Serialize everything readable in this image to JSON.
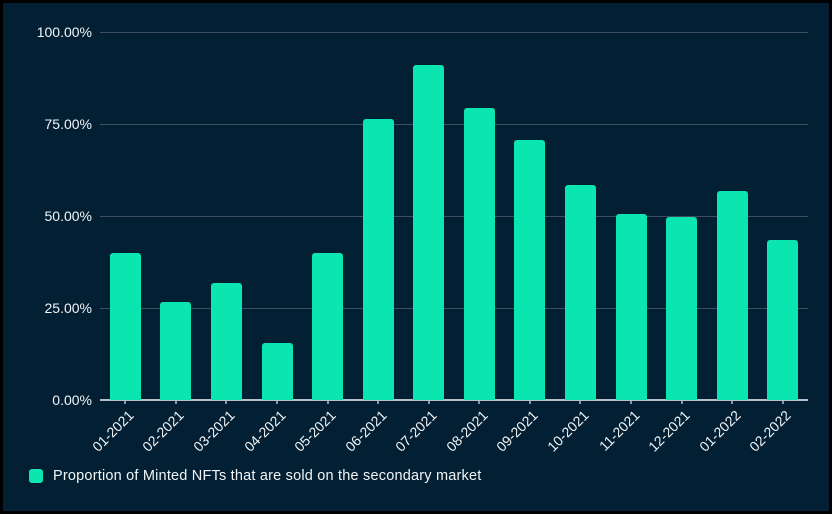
{
  "chart_data": {
    "type": "bar",
    "categories": [
      "01-2021",
      "02-2021",
      "03-2021",
      "04-2021",
      "05-2021",
      "06-2021",
      "07-2021",
      "08-2021",
      "09-2021",
      "10-2021",
      "11-2021",
      "12-2021",
      "01-2022",
      "02-2022"
    ],
    "values": [
      40.0,
      26.7,
      31.7,
      15.6,
      40.0,
      76.3,
      91.0,
      79.4,
      70.6,
      58.3,
      50.6,
      49.7,
      56.7,
      43.6
    ],
    "title": "",
    "xlabel": "",
    "ylabel": "",
    "ylim": [
      0,
      100
    ],
    "y_tick_values": [
      0,
      25,
      50,
      75,
      100
    ],
    "y_tick_labels": [
      "0.00%",
      "25.00%",
      "50.00%",
      "75.00%",
      "100.00%"
    ],
    "grid": "horizontal",
    "legend_position": "bottom-left",
    "series": [
      {
        "name": "Proportion of Minted NFTs that are sold on the secondary market",
        "values": [
          40.0,
          26.7,
          31.7,
          15.6,
          40.0,
          76.3,
          91.0,
          79.4,
          70.6,
          58.3,
          50.6,
          49.7,
          56.7,
          43.6
        ]
      }
    ]
  },
  "legend": {
    "label": "Proportion of Minted NFTs that are sold on the secondary market"
  },
  "colors": {
    "background": "#021f33",
    "frame": "#000000",
    "bar": "#0be5b0",
    "gridline": "#3e4e60",
    "axis_line": "#b6bfc7",
    "tick": "#8a97a5",
    "text": "#f2f5f6"
  }
}
